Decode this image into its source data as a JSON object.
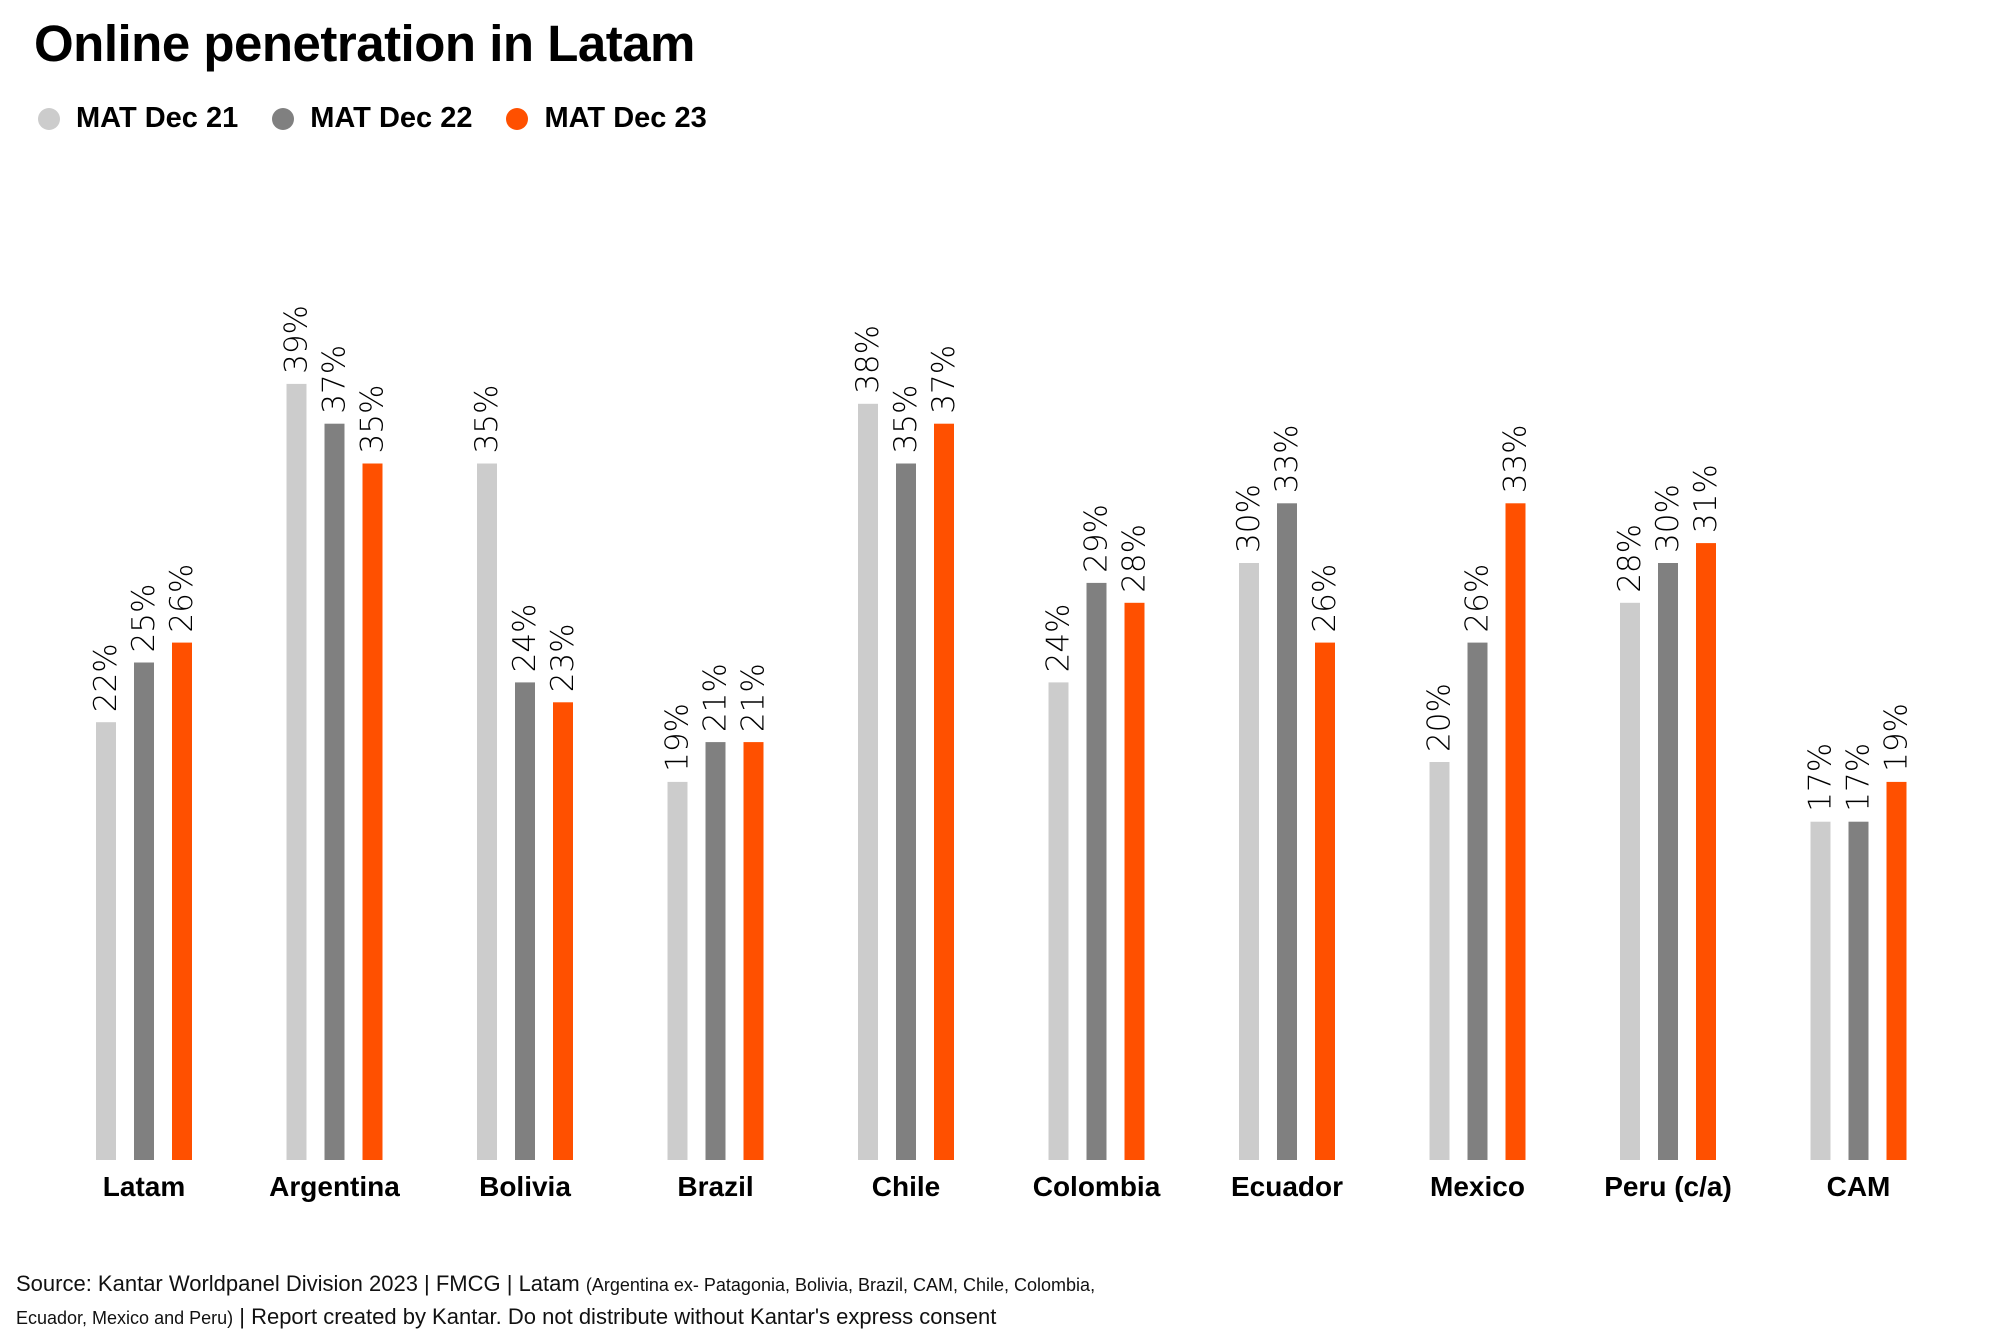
{
  "title": "Online penetration in Latam",
  "colors": {
    "MAT Dec 21": "#cccccc",
    "MAT Dec 22": "#808080",
    "MAT Dec 23": "#ff5000"
  },
  "chart_data": {
    "type": "bar",
    "title": "Online penetration in Latam",
    "xlabel": "",
    "ylabel": "",
    "ylim": [
      0,
      45
    ],
    "grid": false,
    "legend_position": "top-left",
    "categories": [
      "Latam",
      "Argentina",
      "Bolivia",
      "Brazil",
      "Chile",
      "Colombia",
      "Ecuador",
      "Mexico",
      "Peru (c/a)",
      "CAM"
    ],
    "series": [
      {
        "name": "MAT Dec 21",
        "values": [
          22,
          39,
          35,
          19,
          38,
          24,
          30,
          20,
          28,
          17
        ],
        "labels": [
          "22%",
          "39%",
          "35%",
          "19%",
          "38%",
          "24%",
          "30%",
          "20%",
          "28%",
          "17%"
        ]
      },
      {
        "name": "MAT Dec 22",
        "values": [
          25,
          37,
          24,
          21,
          35,
          29,
          33,
          26,
          30,
          17
        ],
        "labels": [
          "25%",
          "37%",
          "24%",
          "21%",
          "35%",
          "29%",
          "33%",
          "26%",
          "30%",
          "17%"
        ]
      },
      {
        "name": "MAT Dec 23",
        "values": [
          26,
          35,
          23,
          21,
          37,
          28,
          26,
          33,
          31,
          19
        ],
        "labels": [
          "26%",
          "35%",
          "23%",
          "21%",
          "37%",
          "28%",
          "26%",
          "33%",
          "31%",
          "19%"
        ]
      }
    ]
  },
  "source": {
    "main": "Source: Kantar Worldpanel Division 2023 | FMCG | Latam",
    "detail_1": "(Argentina ex- Patagonia, Bolivia, Brazil, CAM, Chile, Colombia,",
    "detail_2": "Ecuador, Mexico and Peru)",
    "suffix": "| Report created by Kantar. Do not distribute without Kantar's express consent"
  }
}
